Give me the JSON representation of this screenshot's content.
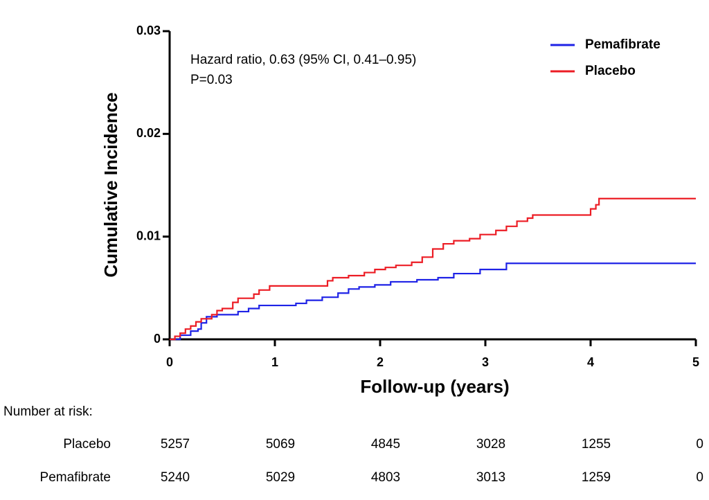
{
  "chart_data": {
    "type": "step",
    "y_label": "Cumulative Incidence",
    "x_label": "Follow-up (years)",
    "annotations": [
      "Hazard ratio, 0.63 (95% CI, 0.41–0.95)",
      "P=0.03"
    ],
    "xlim": [
      0,
      5
    ],
    "xticks": [
      0,
      1,
      2,
      3,
      4,
      5
    ],
    "ylim": [
      0,
      0.03
    ],
    "yticks": [
      0,
      0.01,
      0.02,
      0.03
    ],
    "legend": "upper right",
    "series": [
      {
        "name": "Pemafibrate",
        "color": "#1e22e6",
        "x": [
          0,
          0.1,
          0.2,
          0.27,
          0.3,
          0.35,
          0.45,
          0.65,
          0.75,
          0.85,
          1.2,
          1.3,
          1.45,
          1.6,
          1.7,
          1.8,
          1.95,
          2.1,
          2.35,
          2.55,
          2.7,
          2.95,
          3.2,
          5
        ],
        "values": [
          0,
          0.0004,
          0.0008,
          0.001,
          0.0016,
          0.0022,
          0.0024,
          0.0027,
          0.003,
          0.0033,
          0.0035,
          0.0038,
          0.0041,
          0.0045,
          0.0049,
          0.0051,
          0.0053,
          0.0056,
          0.0058,
          0.006,
          0.0064,
          0.0068,
          0.0074,
          0.0074
        ]
      },
      {
        "name": "Placebo",
        "color": "#ec1c24",
        "x": [
          0,
          0.05,
          0.1,
          0.15,
          0.2,
          0.25,
          0.3,
          0.4,
          0.45,
          0.5,
          0.6,
          0.65,
          0.8,
          0.85,
          0.95,
          1.5,
          1.55,
          1.7,
          1.85,
          1.95,
          2.05,
          2.15,
          2.3,
          2.4,
          2.5,
          2.6,
          2.7,
          2.85,
          2.95,
          3.1,
          3.2,
          3.3,
          3.4,
          3.45,
          4.0,
          4.05,
          4.08,
          5
        ],
        "values": [
          0,
          0.0003,
          0.0006,
          0.001,
          0.0013,
          0.0017,
          0.002,
          0.0024,
          0.0028,
          0.003,
          0.0036,
          0.004,
          0.0044,
          0.0048,
          0.0052,
          0.0057,
          0.006,
          0.0062,
          0.0065,
          0.0068,
          0.007,
          0.0072,
          0.0075,
          0.008,
          0.0088,
          0.0093,
          0.0096,
          0.0098,
          0.0102,
          0.0106,
          0.011,
          0.0115,
          0.0118,
          0.0121,
          0.0127,
          0.0131,
          0.0137,
          0.0137
        ]
      }
    ],
    "risk_table": {
      "title": "Number at risk:",
      "rows": [
        {
          "label": "Placebo",
          "values": [
            5257,
            5069,
            4845,
            3028,
            1255,
            0
          ]
        },
        {
          "label": "Pemafibrate",
          "values": [
            5240,
            5029,
            4803,
            3013,
            1259,
            0
          ]
        }
      ]
    }
  }
}
